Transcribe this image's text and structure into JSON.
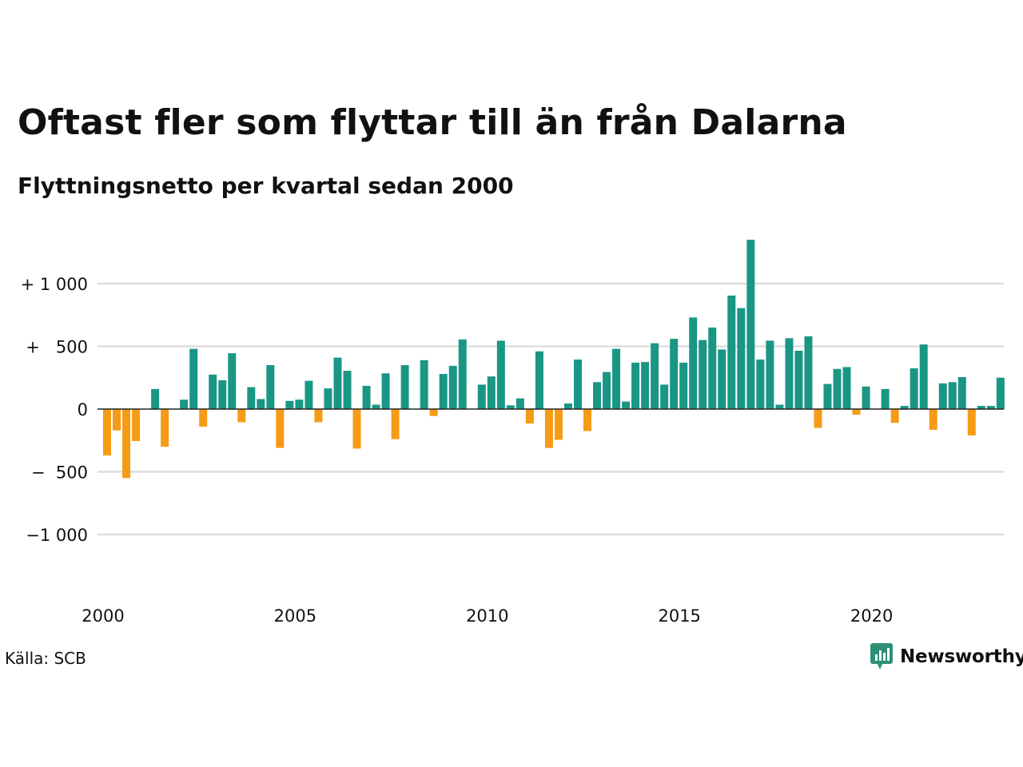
{
  "colors": {
    "positive": "#1a9685",
    "negative": "#f59b16",
    "grid": "#dddddd",
    "zero": "#222222",
    "brand": "#2f8f76"
  },
  "source_label": "Källa: SCB",
  "brand": {
    "name": "Newsworthy",
    "icon": "newsworthy-logo-icon"
  },
  "chart_data": {
    "type": "bar",
    "title": "Oftast fler som flyttar till än från Dalarna",
    "subtitle": "Flyttningsnetto per kvartal sedan 2000",
    "xlabel": "",
    "ylabel": "",
    "ylim": [
      -1500,
      1500
    ],
    "grid": true,
    "y_ticks": [
      {
        "value": 1000,
        "label": "+ 1 000"
      },
      {
        "value": 500,
        "label": "+   500"
      },
      {
        "value": 0,
        "label": "0"
      },
      {
        "value": -500,
        "label": "−  500"
      },
      {
        "value": -1000,
        "label": "−1 000"
      }
    ],
    "x_ticks": [
      {
        "year": 2000,
        "label": "2000"
      },
      {
        "year": 2005,
        "label": "2005"
      },
      {
        "year": 2010,
        "label": "2010"
      },
      {
        "year": 2015,
        "label": "2015"
      },
      {
        "year": 2020,
        "label": "2020"
      }
    ],
    "categories": [
      "2000 Q1",
      "2000 Q2",
      "2000 Q3",
      "2000 Q4",
      "2001 Q1",
      "2001 Q2",
      "2001 Q3",
      "2001 Q4",
      "2002 Q1",
      "2002 Q2",
      "2002 Q3",
      "2002 Q4",
      "2003 Q1",
      "2003 Q2",
      "2003 Q3",
      "2003 Q4",
      "2004 Q1",
      "2004 Q2",
      "2004 Q3",
      "2004 Q4",
      "2005 Q1",
      "2005 Q2",
      "2005 Q3",
      "2005 Q4",
      "2006 Q1",
      "2006 Q2",
      "2006 Q3",
      "2006 Q4",
      "2007 Q1",
      "2007 Q2",
      "2007 Q3",
      "2007 Q4",
      "2008 Q1",
      "2008 Q2",
      "2008 Q3",
      "2008 Q4",
      "2009 Q1",
      "2009 Q2",
      "2009 Q3",
      "2009 Q4",
      "2010 Q1",
      "2010 Q2",
      "2010 Q3",
      "2010 Q4",
      "2011 Q1",
      "2011 Q2",
      "2011 Q3",
      "2011 Q4",
      "2012 Q1",
      "2012 Q2",
      "2012 Q3",
      "2012 Q4",
      "2013 Q1",
      "2013 Q2",
      "2013 Q3",
      "2013 Q4",
      "2014 Q1",
      "2014 Q2",
      "2014 Q3",
      "2014 Q4",
      "2015 Q1",
      "2015 Q2",
      "2015 Q3",
      "2015 Q4",
      "2016 Q1",
      "2016 Q2",
      "2016 Q3",
      "2016 Q4",
      "2017 Q1",
      "2017 Q2",
      "2017 Q3",
      "2017 Q4",
      "2018 Q1",
      "2018 Q2",
      "2018 Q3",
      "2018 Q4",
      "2019 Q1",
      "2019 Q2",
      "2019 Q3",
      "2019 Q4",
      "2020 Q1",
      "2020 Q2",
      "2020 Q3",
      "2020 Q4",
      "2021 Q1",
      "2021 Q2",
      "2021 Q3",
      "2021 Q4",
      "2022 Q1",
      "2022 Q2",
      "2022 Q3",
      "2022 Q4",
      "2023 Q1",
      "2023 Q2",
      "2023 Q3",
      "2023 Q4"
    ],
    "values": [
      -370,
      -170,
      -550,
      -255,
      0,
      160,
      -300,
      0,
      75,
      480,
      -140,
      275,
      230,
      445,
      -105,
      175,
      80,
      350,
      -310,
      65,
      75,
      225,
      -105,
      165,
      410,
      305,
      -315,
      185,
      35,
      285,
      -240,
      350,
      0,
      390,
      -55,
      280,
      345,
      555,
      0,
      195,
      260,
      545,
      30,
      85,
      -115,
      460,
      -310,
      -245,
      45,
      395,
      -175,
      215,
      295,
      480,
      60,
      370,
      375,
      525,
      195,
      560,
      370,
      730,
      550,
      650,
      475,
      905,
      805,
      1350,
      395,
      545,
      35,
      565,
      465,
      580,
      -150,
      200,
      320,
      335,
      -45,
      180,
      0,
      160,
      -110,
      25,
      325,
      515,
      -165,
      205,
      215,
      255,
      -210,
      25,
      25,
      250,
      0,
      0
    ]
  }
}
